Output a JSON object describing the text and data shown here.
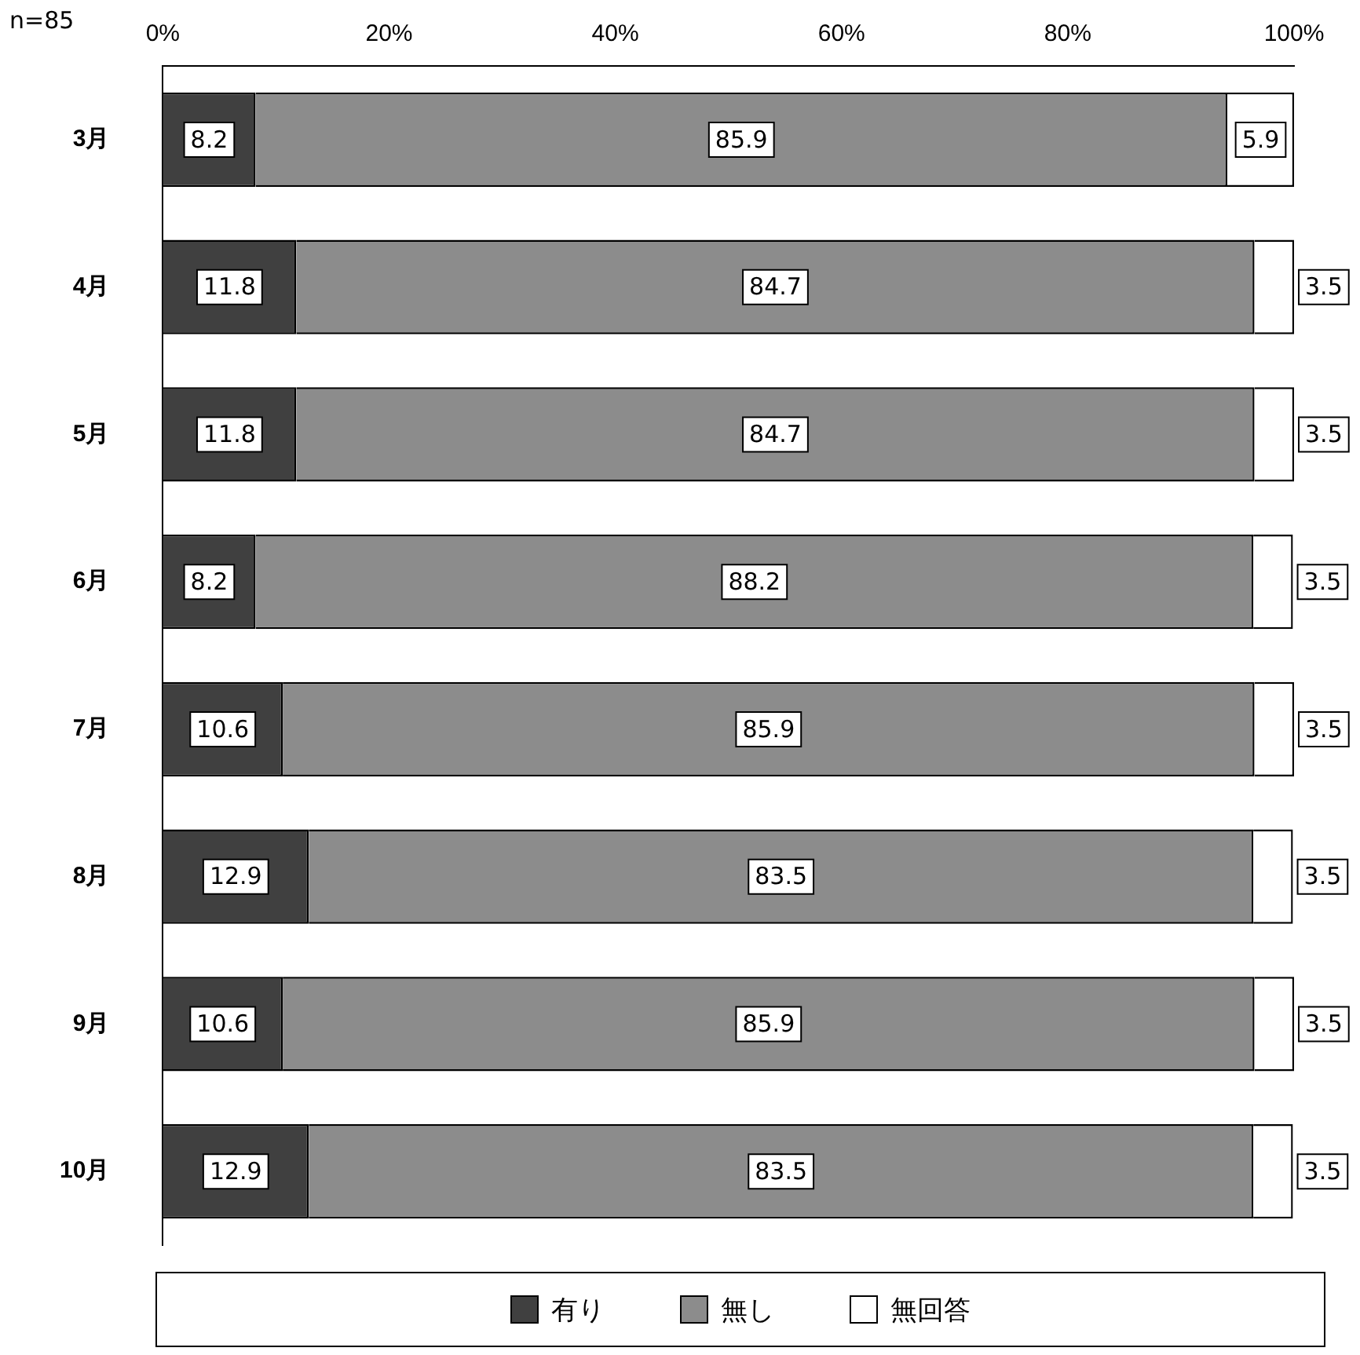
{
  "chart_data": {
    "type": "bar",
    "orientation": "horizontal",
    "stacked": true,
    "categories": [
      "3月",
      "4月",
      "5月",
      "6月",
      "7月",
      "8月",
      "9月",
      "10月"
    ],
    "series": [
      {
        "name": "有り",
        "color": "#404040",
        "values": [
          8.2,
          11.8,
          11.8,
          8.2,
          10.6,
          12.9,
          10.6,
          12.9
        ]
      },
      {
        "name": "無し",
        "color": "#8c8c8c",
        "values": [
          85.9,
          84.7,
          84.7,
          88.2,
          85.9,
          83.5,
          85.9,
          83.5
        ]
      },
      {
        "name": "無回答",
        "color": "#ffffff",
        "values": [
          5.9,
          3.5,
          3.5,
          3.5,
          3.5,
          3.5,
          3.5,
          3.5
        ]
      }
    ],
    "xlim": [
      0,
      100
    ],
    "xticks": [
      {
        "value": 0,
        "label": "0%"
      },
      {
        "value": 20,
        "label": "20%"
      },
      {
        "value": 40,
        "label": "40%"
      },
      {
        "value": 60,
        "label": "60%"
      },
      {
        "value": 80,
        "label": "80%"
      },
      {
        "value": 100,
        "label": "100%"
      }
    ],
    "data_labels": true,
    "legend": "bottom",
    "grid": false,
    "annotations": [
      "n=85"
    ]
  }
}
